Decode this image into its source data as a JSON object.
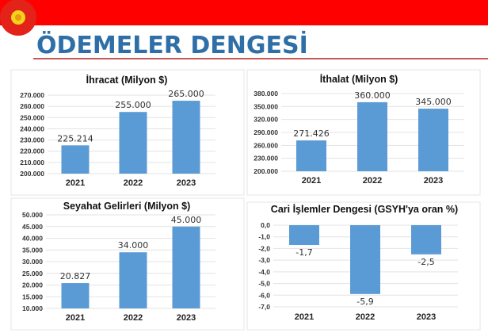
{
  "header": {
    "title": "ÖDEMELER DENGESİ",
    "band_color": "#ff0000",
    "title_color": "#2f6fa8",
    "logo": "presidential-seal"
  },
  "bar_color": "#5b9bd5",
  "chart_data": [
    {
      "type": "bar",
      "title": "İhracat (Milyon $)",
      "categories": [
        "2021",
        "2022",
        "2023"
      ],
      "values": [
        225214,
        255000,
        265000
      ],
      "data_labels": [
        "225.214",
        "255.000",
        "265.000"
      ],
      "ylim": [
        200000,
        270000
      ],
      "yticks": [
        "200.000",
        "210.000",
        "220.000",
        "230.000",
        "240.000",
        "250.000",
        "260.000",
        "270.000"
      ],
      "grid": true
    },
    {
      "type": "bar",
      "title": "İthalat (Milyon $)",
      "categories": [
        "2021",
        "2022",
        "2023"
      ],
      "values": [
        271426,
        360000,
        345000
      ],
      "data_labels": [
        "271.426",
        "360.000",
        "345.000"
      ],
      "ylim": [
        200000,
        380000
      ],
      "yticks": [
        "200.000",
        "230.000",
        "260.000",
        "290.000",
        "320.000",
        "350.000",
        "380.000"
      ],
      "grid": true
    },
    {
      "type": "bar",
      "title": "Seyahat Gelirleri (Milyon $)",
      "categories": [
        "2021",
        "2022",
        "2023"
      ],
      "values": [
        20827,
        34000,
        45000
      ],
      "data_labels": [
        "20.827",
        "34.000",
        "45.000"
      ],
      "ylim": [
        10000,
        50000
      ],
      "yticks": [
        "10.000",
        "15.000",
        "20.000",
        "25.000",
        "30.000",
        "35.000",
        "40.000",
        "45.000",
        "50.000"
      ],
      "grid": true
    },
    {
      "type": "bar",
      "title": "Cari İşlemler Dengesi (GSYH'ya oran %)",
      "categories": [
        "2021",
        "2022",
        "2023"
      ],
      "values": [
        -1.7,
        -5.9,
        -2.5
      ],
      "data_labels": [
        "-1,7",
        "-5,9",
        "-2,5"
      ],
      "ylim": [
        -7,
        0
      ],
      "yticks": [
        "-7,0",
        "-6,0",
        "-5,0",
        "-4,0",
        "-3,0",
        "-2,0",
        "-1,0",
        "0,0"
      ],
      "grid": true
    }
  ]
}
